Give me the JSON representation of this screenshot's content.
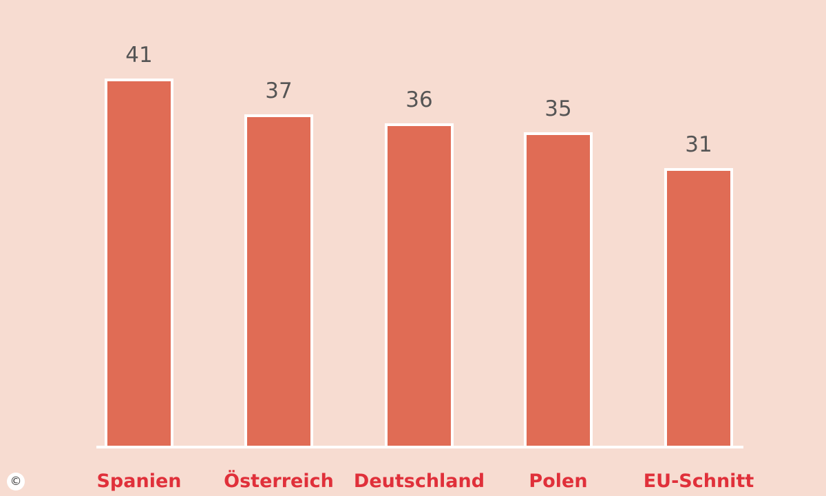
{
  "chart_data": {
    "type": "bar",
    "categories": [
      "Spanien",
      "Österreich",
      "Deutschland",
      "Polen",
      "EU-Schnitt"
    ],
    "values": [
      41,
      37,
      36,
      35,
      31
    ],
    "data_labels": [
      "41",
      "37",
      "36",
      "35",
      "31"
    ],
    "title": "",
    "xlabel": "",
    "ylabel": "",
    "ylim": [
      0,
      41
    ],
    "grid": false,
    "legend": "none",
    "colors": {
      "background": "#f7dcd1",
      "bar_fill": "#e06c55",
      "bar_stroke": "#ffffff",
      "category_label": "#e0303a",
      "value_label": "#555555",
      "baseline": "#ffffff"
    }
  },
  "copyright": {
    "symbol": "©"
  }
}
